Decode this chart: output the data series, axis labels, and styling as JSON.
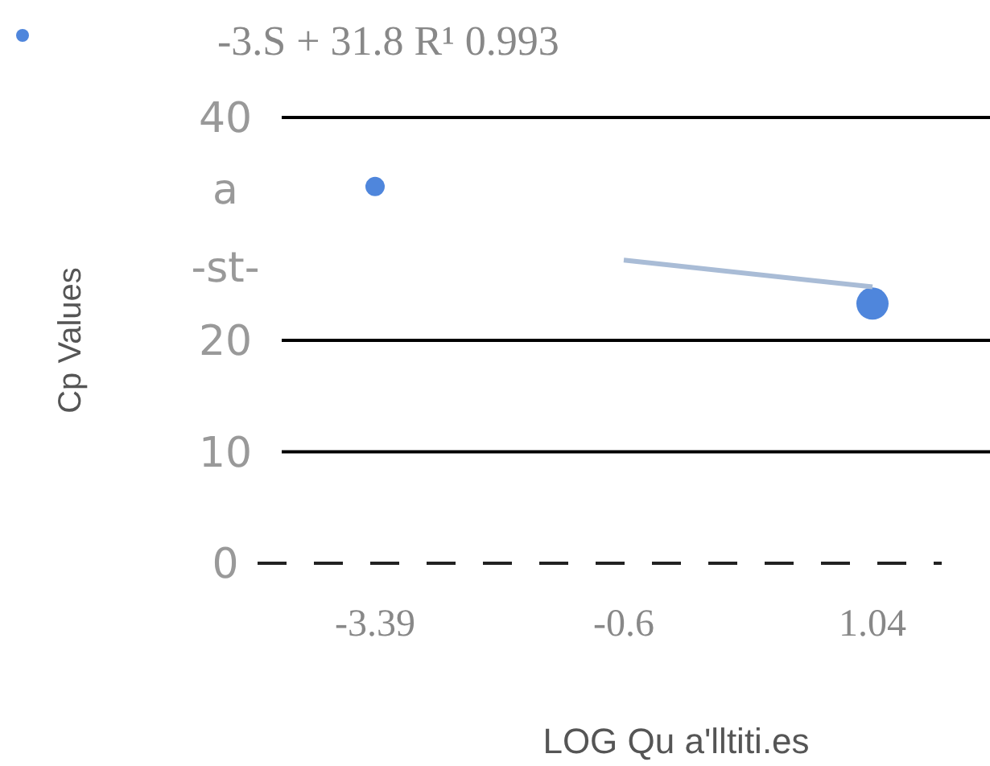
{
  "chart_data": {
    "type": "scatter",
    "xlabel": "LOG Qu a'lltiti.es",
    "ylabel": "Cp Values",
    "annotations": [
      "-3.S    + 31.8 R¹    0.993"
    ],
    "categories": [
      "-3.39",
      "-0.6",
      "1.04"
    ],
    "series": [
      {
        "color": "#4f86dc",
        "values": [
          33.8,
          null,
          23.3
        ],
        "marker": "circle"
      },
      {
        "type": "line",
        "color": "#a9bcd6",
        "values": [
          null,
          27.2,
          24.8
        ]
      }
    ],
    "ylim": [
      0,
      40
    ],
    "yticks": [
      0,
      10,
      20,
      {
        "value": 26.6,
        "label": "-st-"
      },
      {
        "value": 33.6,
        "label": "a"
      },
      40
    ],
    "grid": "y"
  }
}
